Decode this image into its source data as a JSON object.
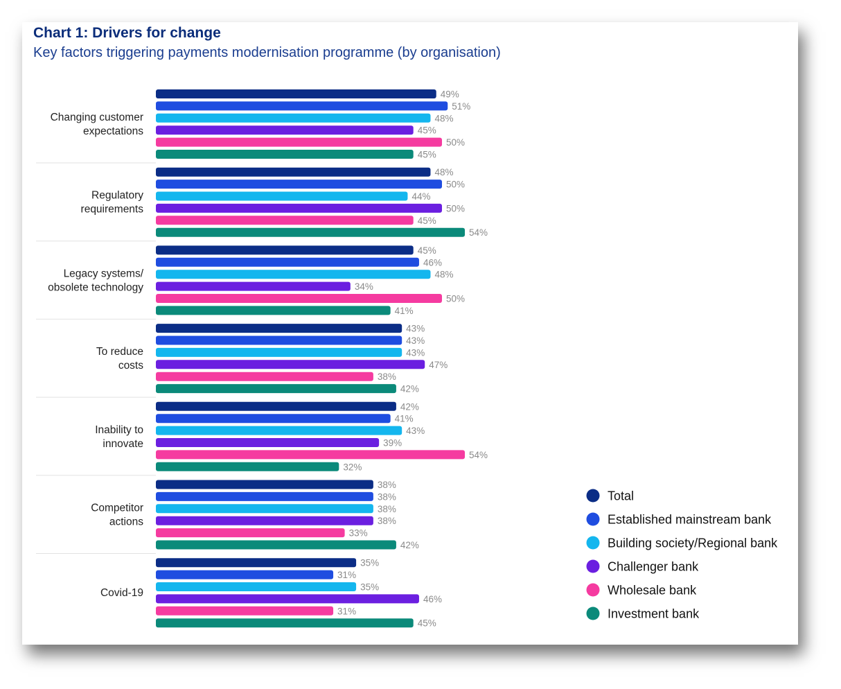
{
  "chart_data": {
    "type": "bar",
    "orientation": "horizontal",
    "title": "Chart 1: Drivers for change",
    "subtitle": "Key factors triggering payments modernisation programme (by organisation)",
    "categories": [
      [
        "Changing customer",
        "expectations"
      ],
      [
        "Regulatory",
        "requirements"
      ],
      [
        "Legacy systems/",
        "obsolete technology"
      ],
      [
        "To reduce",
        "costs"
      ],
      [
        "Inability to",
        "innovate"
      ],
      [
        "Competitor",
        "actions"
      ],
      [
        "Covid-19"
      ]
    ],
    "value_suffix": "%",
    "series": [
      {
        "name": "Total",
        "color": "#0b2d86",
        "values": [
          49,
          48,
          45,
          43,
          42,
          38,
          35
        ]
      },
      {
        "name": "Established mainstream bank",
        "color": "#1f4de0",
        "values": [
          51,
          50,
          46,
          43,
          41,
          38,
          31
        ]
      },
      {
        "name": "Building society/Regional bank",
        "color": "#14b6ee",
        "values": [
          48,
          44,
          48,
          43,
          43,
          38,
          35
        ]
      },
      {
        "name": "Challenger bank",
        "color": "#6b1fe0",
        "values": [
          45,
          50,
          34,
          47,
          39,
          38,
          46
        ]
      },
      {
        "name": "Wholesale bank",
        "color": "#f53ba0",
        "values": [
          50,
          45,
          50,
          38,
          54,
          33,
          31
        ]
      },
      {
        "name": "Investment bank",
        "color": "#0b8a7a",
        "values": [
          45,
          54,
          41,
          42,
          32,
          42,
          45
        ]
      }
    ],
    "legend_position": "bottom-right",
    "grid": false
  }
}
